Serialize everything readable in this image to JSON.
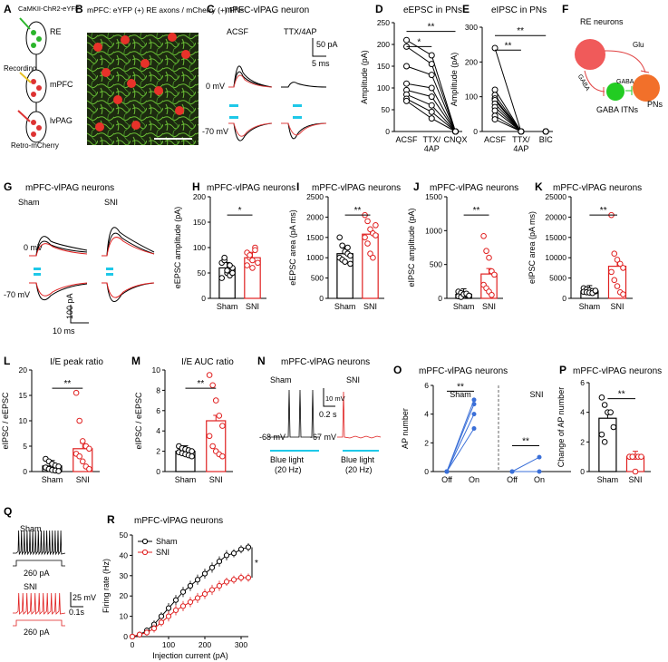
{
  "panels": {
    "A": {
      "letter": "A",
      "labels": [
        "CaMKII-ChR2-eYFP",
        "RE",
        "Recording",
        "mPFC",
        "lvPAG",
        "Retro-mCherry"
      ]
    },
    "B": {
      "letter": "B",
      "caption": "mPFC: eYFP (+) RE axons / mCherry (+) PNs"
    },
    "C": {
      "letter": "C",
      "title": "mPFC-vlPAG  neuron",
      "cond1": "ACSF",
      "cond2": "TTX/4AP",
      "v1": "0 mV",
      "v2": "-70 mV",
      "scale_y": "50 pA",
      "scale_x": "5 ms"
    },
    "D": {
      "letter": "D",
      "title": "eEPSC in PNs",
      "ylabel": "Amplitude (pA)",
      "sig": [
        "*",
        "**"
      ]
    },
    "E": {
      "letter": "E",
      "title": "eIPSC in PNs",
      "ylabel": "Amplitude (pA)",
      "sig": [
        "**",
        "**"
      ]
    },
    "F": {
      "letter": "F",
      "title": "RE neurons",
      "glu": "Glu",
      "gaba1": "GABA",
      "gaba2": "GABA",
      "itn": "GABA ITNs",
      "pns": "PNs"
    },
    "G": {
      "letter": "G",
      "title": "mPFC-vlPAG  neurons",
      "sham": "Sham",
      "sni": "SNI",
      "v1": "0 mV",
      "v2": "-70 mV",
      "scale_y": "100 pA",
      "scale_x": "10 ms"
    },
    "H": {
      "letter": "H",
      "title": "mPFC-vlPAG  neurons",
      "sig": "*"
    },
    "I": {
      "letter": "I",
      "title": "mPFC-vlPAG  neurons",
      "sig": "**"
    },
    "J": {
      "letter": "J",
      "title": "mPFC-vlPAG  neurons",
      "sig": "**"
    },
    "K": {
      "letter": "K",
      "title": "mPFC-vlPAG  neurons",
      "sig": "**"
    },
    "L": {
      "letter": "L",
      "title": "I/E peak ratio",
      "sig": "**"
    },
    "M": {
      "letter": "M",
      "title": "I/E AUC ratio",
      "sig": "**"
    },
    "N": {
      "letter": "N",
      "title": "mPFC-vlPAG  neurons",
      "sham": "Sham",
      "sni": "SNI",
      "v1": "-68 mV",
      "v2": "-67 mV",
      "scale_y": "10 mV",
      "scale_x": "0.2 s",
      "light": "Blue light",
      "hz": "(20 Hz)"
    },
    "O": {
      "letter": "O",
      "title": "mPFC-vlPAG  neurons",
      "sham": "Sham",
      "sni": "SNI",
      "sig": "**"
    },
    "P": {
      "letter": "P",
      "title": "mPFC-vlPAG  neurons",
      "sig": "**"
    },
    "Q": {
      "letter": "Q",
      "sham": "Sham",
      "sni": "SNI",
      "cur": "260 pA",
      "scale_y": "25 mV",
      "scale_x": "0.1s"
    },
    "R": {
      "letter": "R",
      "title": "mPFC-vlPAG  neurons",
      "sig": "*"
    }
  },
  "colors": {
    "sham": "#000000",
    "sni": "#e02020",
    "blue": "#1ec8e8",
    "red_cell": "#f05a5a",
    "green_cell": "#22cc22",
    "orange": "#f2702a"
  },
  "chart_data": [
    {
      "id": "D",
      "type": "scatter",
      "title": "eEPSC in PNs",
      "ylabel": "Amplitude (pA)",
      "categories": [
        "ACSF",
        "TTX/\n4AP",
        "CNQX"
      ],
      "ylim": [
        0,
        250
      ],
      "yticks": [
        0,
        50,
        100,
        150,
        200,
        250
      ],
      "lines": [
        [
          210,
          175,
          0
        ],
        [
          195,
          155,
          0
        ],
        [
          150,
          130,
          0
        ],
        [
          110,
          100,
          0
        ],
        [
          95,
          80,
          0
        ],
        [
          85,
          60,
          0
        ],
        [
          75,
          45,
          0
        ],
        [
          70,
          30,
          0
        ]
      ]
    },
    {
      "id": "E",
      "type": "scatter",
      "title": "eIPSC in PNs",
      "ylabel": "Amplitude (pA)",
      "categories": [
        "ACSF",
        "TTX/\n4AP",
        "BIC"
      ],
      "ylim": [
        0,
        300
      ],
      "yticks": [
        0,
        100,
        200,
        300
      ],
      "lines": [
        [
          240,
          0,
          0
        ],
        [
          120,
          0,
          0
        ],
        [
          105,
          0,
          0
        ],
        [
          95,
          0,
          0
        ],
        [
          90,
          0,
          0
        ],
        [
          80,
          0,
          0
        ],
        [
          70,
          0,
          0
        ],
        [
          60,
          0,
          0
        ],
        [
          45,
          0,
          0
        ],
        [
          35,
          0,
          0
        ]
      ]
    },
    {
      "id": "H",
      "type": "bar",
      "ylabel": "eEPSC amplitude (pA)",
      "categories": [
        "Sham",
        "SNI"
      ],
      "ylim": [
        0,
        200
      ],
      "yticks": [
        0,
        50,
        100,
        150,
        200
      ],
      "values": [
        60,
        80
      ],
      "points": [
        [
          70,
          75,
          50,
          45,
          60,
          40,
          80,
          55,
          65,
          50
        ],
        [
          90,
          80,
          75,
          100,
          70,
          65,
          85,
          60,
          95
        ]
      ]
    },
    {
      "id": "I",
      "type": "bar",
      "ylabel": "eEPSC area (pA ms)",
      "categories": [
        "Sham",
        "SNI"
      ],
      "ylim": [
        0,
        2500
      ],
      "yticks": [
        0,
        500,
        1000,
        1500,
        2000,
        2500
      ],
      "values": [
        1100,
        1580
      ],
      "points": [
        [
          1500,
          1300,
          1150,
          1100,
          1050,
          1000,
          950,
          900,
          1250,
          850
        ],
        [
          2050,
          1900,
          1700,
          1600,
          1550,
          1500,
          1350,
          1100,
          1000,
          1800
        ]
      ]
    },
    {
      "id": "J",
      "type": "bar",
      "ylabel": "eIPSC amplitude (pA)",
      "categories": [
        "Sham",
        "SNI"
      ],
      "ylim": [
        0,
        1500
      ],
      "yticks": [
        0,
        500,
        1000,
        1500
      ],
      "values": [
        60,
        360
      ],
      "points": [
        [
          100,
          80,
          60,
          50,
          40,
          30,
          20,
          60,
          70,
          40
        ],
        [
          920,
          700,
          600,
          400,
          350,
          200,
          150,
          100,
          50
        ]
      ]
    },
    {
      "id": "K",
      "type": "bar",
      "ylabel": "eIPSC area (pA ms)",
      "categories": [
        "Sham",
        "SNI"
      ],
      "ylim": [
        0,
        25000
      ],
      "yticks": [
        0,
        5000,
        10000,
        15000,
        20000,
        25000
      ],
      "values": [
        1800,
        7900
      ],
      "points": [
        [
          2500,
          2200,
          2000,
          1800,
          1700,
          1600,
          1500,
          1400,
          1300,
          1900
        ],
        [
          20500,
          11000,
          9500,
          8500,
          7500,
          6500,
          4500,
          3000,
          1500,
          1000
        ]
      ]
    },
    {
      "id": "L",
      "type": "bar",
      "ylabel": "eIPSC / eEPSC",
      "categories": [
        "Sham",
        "SNI"
      ],
      "ylim": [
        0,
        20
      ],
      "yticks": [
        0,
        5,
        10,
        15,
        20
      ],
      "values": [
        1.1,
        4.5
      ],
      "points": [
        [
          2.5,
          2,
          1.5,
          1.2,
          1,
          0.8,
          0.5,
          0.3,
          0.2,
          0.1
        ],
        [
          15.5,
          10,
          6,
          5,
          4.5,
          3.5,
          3,
          2,
          1,
          0.5
        ]
      ]
    },
    {
      "id": "M",
      "type": "bar",
      "ylabel": "eIPSC / eEPSC",
      "categories": [
        "Sham",
        "SNI"
      ],
      "ylim": [
        0,
        10
      ],
      "yticks": [
        0,
        2,
        4,
        6,
        8,
        10
      ],
      "values": [
        2.0,
        5.0
      ],
      "points": [
        [
          2.5,
          2.3,
          2.2,
          2.1,
          2,
          1.9,
          1.8,
          1.7,
          1.6,
          1.5
        ],
        [
          9.5,
          8.5,
          7,
          5.5,
          4.5,
          3.5,
          2.5,
          2,
          1.7,
          1.5
        ]
      ]
    },
    {
      "id": "O",
      "type": "scatter",
      "ylabel": "AP number",
      "categories": [
        "Off",
        "On",
        "Off",
        "On"
      ],
      "ylim": [
        0,
        6
      ],
      "yticks": [
        0,
        2,
        4,
        6
      ],
      "sham_lines": [
        [
          0,
          5
        ],
        [
          0,
          4.7
        ],
        [
          0,
          4
        ],
        [
          0,
          3
        ]
      ],
      "sni_lines": [
        [
          0,
          1
        ],
        [
          0,
          0
        ]
      ]
    },
    {
      "id": "P",
      "type": "bar",
      "ylabel": "Change of AP number",
      "categories": [
        "Sham",
        "SNI"
      ],
      "ylim": [
        0,
        6
      ],
      "yticks": [
        0,
        2,
        4,
        6
      ],
      "values": [
        3.6,
        1.0
      ],
      "points": [
        [
          5,
          4.5,
          4,
          4,
          3,
          2.5,
          2
        ],
        [
          1,
          1,
          1,
          1,
          1,
          1,
          1,
          0
        ]
      ]
    },
    {
      "id": "R",
      "type": "line",
      "title": "mPFC-vlPAG  neurons",
      "xlabel": "Injection current (pA)",
      "ylabel": "Firing rate (Hz)",
      "xlim": [
        0,
        320
      ],
      "ylim": [
        0,
        50
      ],
      "xticks": [
        0,
        100,
        200,
        300
      ],
      "yticks": [
        0,
        10,
        20,
        30,
        40,
        50
      ],
      "x": [
        0,
        20,
        40,
        60,
        80,
        100,
        120,
        140,
        160,
        180,
        200,
        220,
        240,
        260,
        280,
        300,
        320
      ],
      "series": [
        {
          "name": "Sham",
          "values": [
            0,
            1,
            3,
            6,
            10,
            14,
            18,
            22,
            25,
            28,
            31,
            34,
            37,
            40,
            41,
            43,
            44
          ],
          "err": [
            0.5,
            1,
            1.5,
            2,
            2,
            2.5,
            2.5,
            2.5,
            2.5,
            2.5,
            2.5,
            2.5,
            2.5,
            2.5,
            2,
            2,
            2
          ]
        },
        {
          "name": "SNI",
          "values": [
            0,
            1,
            2,
            4,
            7,
            10,
            13,
            15,
            17,
            19,
            21,
            23,
            25,
            27,
            28,
            29,
            29
          ],
          "err": [
            0.5,
            1,
            1.5,
            2,
            2,
            2.5,
            2.5,
            2.5,
            2.5,
            2.5,
            2.5,
            2.5,
            2.5,
            2,
            2,
            2,
            2
          ]
        }
      ]
    }
  ]
}
